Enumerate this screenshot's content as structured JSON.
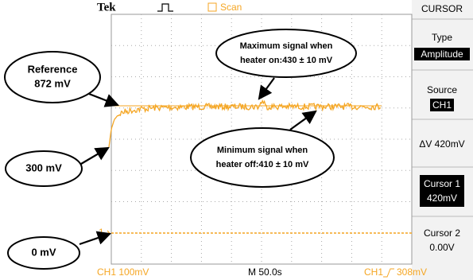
{
  "header": {
    "brand": "Tek",
    "mode": "Scan",
    "menu_title": "CURSOR"
  },
  "menu": {
    "type_label": "Type",
    "type_value": "Amplitude",
    "source_label": "Source",
    "source_value": "CH1",
    "delta_v": "ΔV 420mV",
    "cursor1_label": "Cursor 1",
    "cursor1_value": "420mV",
    "cursor2_label": "Cursor 2",
    "cursor2_value": "0.00V"
  },
  "ground_marker": "1",
  "footer": {
    "channel": "CH1  100mV",
    "timebase": "M 50.0s",
    "trigger_channel": "CH1",
    "trigger_level": "308mV"
  },
  "annotations": {
    "reference": [
      "Reference",
      "872 mV"
    ],
    "start": "300 mV",
    "zero": "0 mV",
    "maximum": [
      "Maximum signal when",
      "heater on:430 ± 10 mV"
    ],
    "minimum": [
      "Minimum signal when",
      "heater off:410 ± 10 mV"
    ]
  }
}
